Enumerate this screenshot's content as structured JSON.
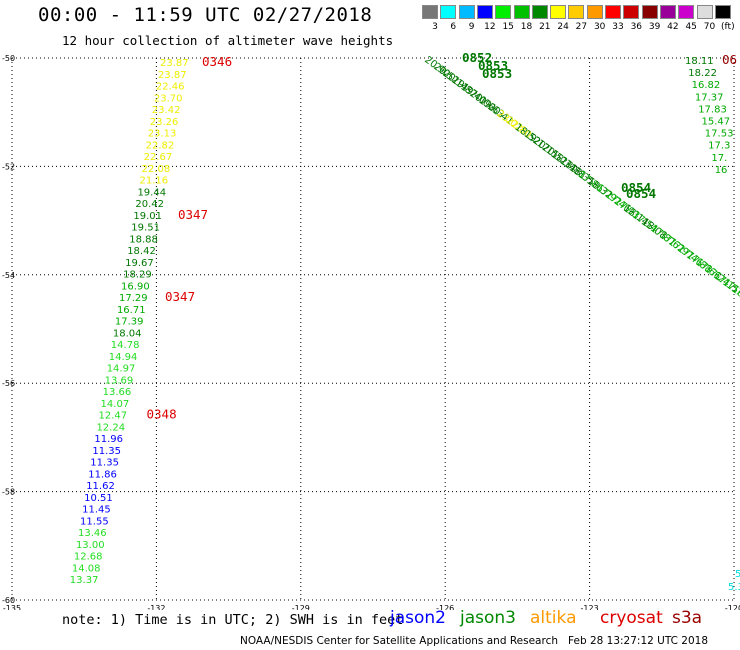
{
  "header": {
    "title": "00:00 - 11:59 UTC 02/27/2018",
    "subtitle": "12 hour collection of altimeter wave heights"
  },
  "colorbar": {
    "colors": [
      "#777777",
      "#00ffff",
      "#00bbff",
      "#0000ff",
      "#00ee00",
      "#00c000",
      "#008800",
      "#ffff00",
      "#ffcc00",
      "#ff9900",
      "#ff0000",
      "#cc0000",
      "#880000",
      "#990099",
      "#cc00cc",
      "#dddddd",
      "#000000"
    ],
    "labels": [
      "3",
      "6",
      "9",
      "12",
      "15",
      "18",
      "21",
      "24",
      "27",
      "30",
      "33",
      "36",
      "39",
      "42",
      "45",
      "70",
      "(ft)"
    ]
  },
  "map": {
    "lon_range": [
      -135,
      -120
    ],
    "lat_range": [
      -60,
      -50
    ],
    "lon_ticks": [
      "-135",
      "-132",
      "-129",
      "-126",
      "-123",
      "-120"
    ],
    "lat_ticks": [
      "-50",
      "-52",
      "-54",
      "-56",
      "-58",
      "-60"
    ],
    "west_track": {
      "time_labels": [
        "0346",
        "0347",
        "0347",
        "0348"
      ],
      "values": [
        "23.87",
        "23.87",
        "22.46",
        "23.70",
        "23.42",
        "23.26",
        "23.13",
        "22.82",
        "22.67",
        "22.08",
        "21.16",
        "19.44",
        "20.42",
        "19.01",
        "19.51",
        "18.88",
        "18.42",
        "19.67",
        "18.29",
        "16.90",
        "17.29",
        "16.71",
        "17.39",
        "18.04",
        "14.78",
        "14.94",
        "14.97",
        "13.69",
        "13.66",
        "14.07",
        "12.47",
        "12.24",
        "11.96",
        "11.35",
        "11.35",
        "11.86",
        "11.62",
        "10.51",
        "11.45",
        "11.55",
        "13.46",
        "13.00",
        "12.68",
        "14.08",
        "13.37"
      ]
    },
    "east_track": {
      "time_labels": [
        "0852",
        "0853",
        "0853",
        "0854",
        "0854"
      ],
      "values": [
        "20.90",
        "20.52",
        "20.14",
        "19.87",
        "19.40",
        "20.06",
        "19.63",
        "20.41",
        "23.02",
        "22.80",
        "18.52",
        "19.17",
        "20.15",
        "20.52",
        "18.34",
        "18.88",
        "18.35",
        "17.86",
        "18.32",
        "17.92",
        "17.46",
        "17.93",
        "18.14",
        "17.54",
        "18.08",
        "17.87",
        "17.62",
        "17.97",
        "17.46",
        "17.88",
        "17.66",
        "17.24",
        "17.15",
        "17.73",
        "16.94",
        "17.32"
      ]
    },
    "edge_track": {
      "time_labels": [
        "06"
      ],
      "values": [
        "18.11",
        "18.22",
        "16.82",
        "17.37",
        "17.83",
        "15.47",
        "17.53",
        "17.3",
        "17.",
        "16"
      ]
    },
    "corner_track": {
      "values": [
        "5",
        "5.3"
      ]
    }
  },
  "legend": {
    "note": "note: 1) Time is in UTC; 2) SWH is in feet",
    "satellites": [
      {
        "name": "jason2",
        "color": "#0000ff"
      },
      {
        "name": "jason3",
        "color": "#008800"
      },
      {
        "name": "altika",
        "color": "#ff9900"
      },
      {
        "name": "cryosat",
        "color": "#dd0000"
      },
      {
        "name": "s3a",
        "color": "#990000"
      }
    ]
  },
  "footer": {
    "credit": "NOAA/NESDIS Center for Satellite Applications and Research",
    "timestamp": "Feb 28 13:27:12 UTC 2018"
  }
}
